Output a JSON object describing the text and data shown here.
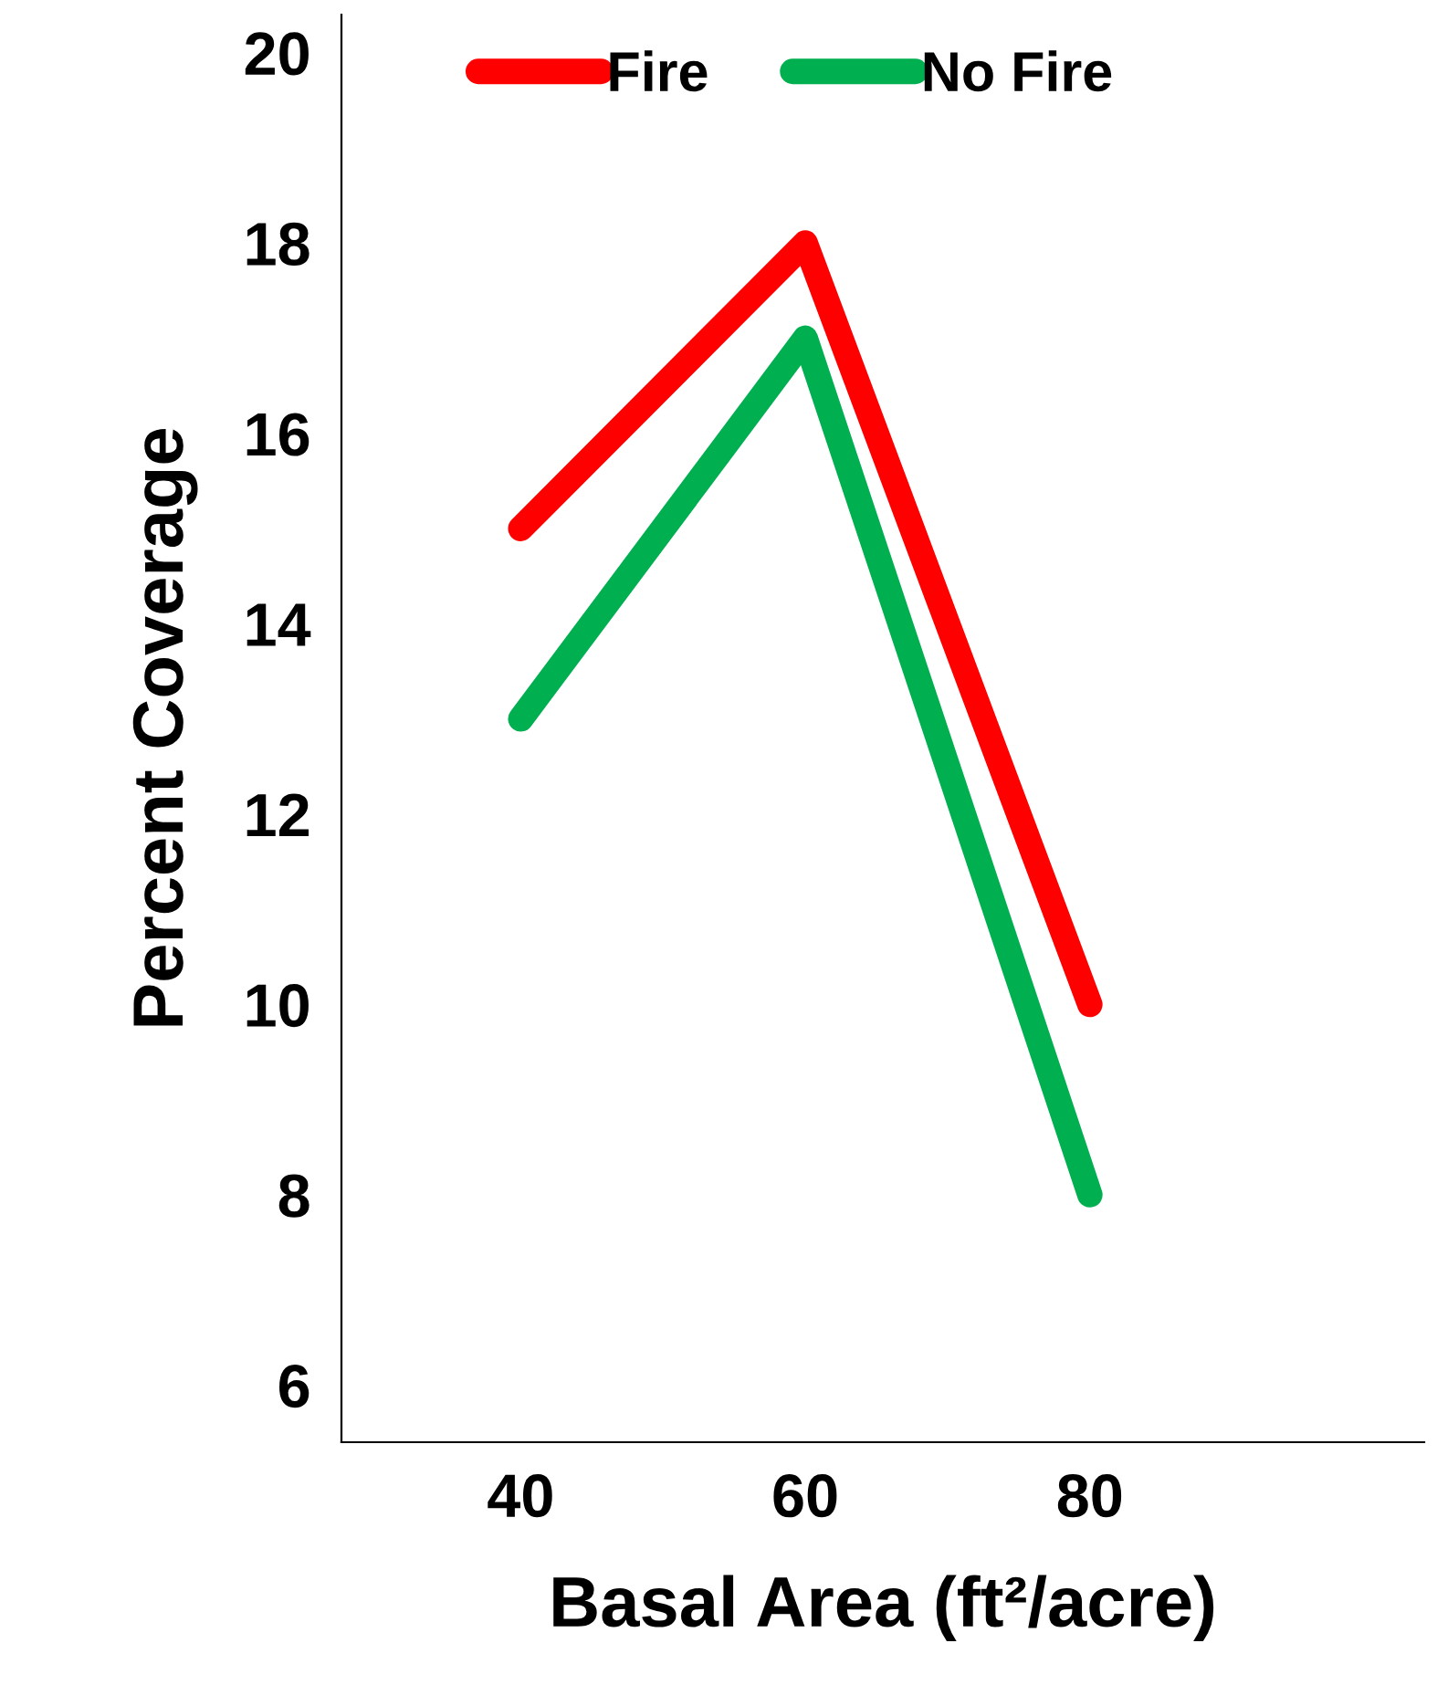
{
  "chart_data": {
    "type": "line",
    "xlabel": "Basal Area (ft²/acre)",
    "ylabel": "Percent Coverage",
    "x": [
      40,
      60,
      80
    ],
    "series": [
      {
        "name": "Fire",
        "color": "#ff0000",
        "values": [
          15,
          18,
          10
        ]
      },
      {
        "name": "No Fire",
        "color": "#00b050",
        "values": [
          13,
          17,
          8
        ]
      }
    ],
    "xlim": [
      27.4,
      103.5
    ],
    "xticks": [
      40,
      60,
      80
    ],
    "ylim": [
      5.4,
      20.4
    ],
    "yticks": [
      6,
      8,
      10,
      12,
      14,
      16,
      18,
      20
    ],
    "grid": false,
    "legend": "top left",
    "line_style": "solid"
  }
}
